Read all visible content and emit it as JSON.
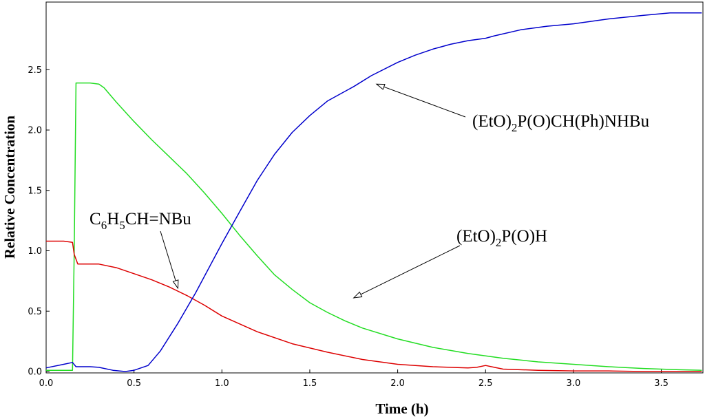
{
  "chart_data": {
    "type": "line",
    "title": "",
    "xlabel": "Time (h)",
    "ylabel": "Relative Concentration",
    "xlim": [
      0,
      3.73
    ],
    "ylim": [
      -0.02,
      3.0
    ],
    "grid": false,
    "x_ticks": [
      0.0,
      0.5,
      1.0,
      1.5,
      2.0,
      2.5,
      3.0,
      3.5
    ],
    "x_tick_labels": [
      "0.0",
      "0.5",
      "1.0",
      "1.5",
      "2.0",
      "2.5",
      "3.0",
      "3.5"
    ],
    "y_ticks": [
      0.0,
      0.5,
      1.0,
      1.5,
      2.0,
      2.5
    ],
    "y_tick_labels": [
      "0.0",
      "0.5",
      "1.0",
      "1.5",
      "2.0",
      "2.5"
    ],
    "series": [
      {
        "name": "(EtO)2P(O)CH(Ph)NHBu",
        "color": "#0000cc",
        "x": [
          0,
          0.1,
          0.15,
          0.17,
          0.25,
          0.3,
          0.38,
          0.45,
          0.5,
          0.58,
          0.65,
          0.75,
          0.85,
          1.0,
          1.1,
          1.2,
          1.3,
          1.4,
          1.5,
          1.6,
          1.65,
          1.75,
          1.85,
          2.0,
          2.1,
          2.2,
          2.3,
          2.4,
          2.5,
          2.55,
          2.7,
          2.85,
          3.0,
          3.2,
          3.4,
          3.55,
          3.73
        ],
        "y": [
          0.03,
          0.06,
          0.075,
          0.04,
          0.04,
          0.035,
          0.01,
          0.0,
          0.01,
          0.05,
          0.17,
          0.4,
          0.65,
          1.06,
          1.32,
          1.58,
          1.8,
          1.98,
          2.12,
          2.24,
          2.28,
          2.36,
          2.45,
          2.56,
          2.62,
          2.67,
          2.71,
          2.74,
          2.76,
          2.78,
          2.83,
          2.86,
          2.88,
          2.92,
          2.95,
          2.97,
          2.97
        ]
      },
      {
        "name": "(EtO)2P(O)H",
        "color": "#22dd22",
        "x": [
          0,
          0.15,
          0.16,
          0.17,
          0.19,
          0.25,
          0.3,
          0.33,
          0.4,
          0.5,
          0.6,
          0.7,
          0.8,
          0.9,
          1.0,
          1.1,
          1.2,
          1.3,
          1.4,
          1.5,
          1.6,
          1.7,
          1.8,
          2.0,
          2.2,
          2.4,
          2.5,
          2.6,
          2.8,
          3.0,
          3.2,
          3.4,
          3.6,
          3.73
        ],
        "y": [
          0.01,
          0.01,
          1.0,
          2.39,
          2.39,
          2.39,
          2.38,
          2.35,
          2.23,
          2.07,
          1.92,
          1.78,
          1.64,
          1.48,
          1.31,
          1.13,
          0.96,
          0.8,
          0.68,
          0.57,
          0.49,
          0.42,
          0.36,
          0.27,
          0.2,
          0.15,
          0.13,
          0.11,
          0.08,
          0.06,
          0.04,
          0.025,
          0.015,
          0.01
        ]
      },
      {
        "name": "C6H5CH=NBu",
        "color": "#dd0000",
        "x": [
          0,
          0.1,
          0.15,
          0.16,
          0.18,
          0.3,
          0.4,
          0.5,
          0.6,
          0.7,
          0.8,
          0.9,
          1.0,
          1.2,
          1.4,
          1.6,
          1.8,
          2.0,
          2.2,
          2.4,
          2.45,
          2.5,
          2.55,
          2.6,
          2.8,
          3.0,
          3.2,
          3.4,
          3.6,
          3.73
        ],
        "y": [
          1.08,
          1.08,
          1.07,
          0.97,
          0.89,
          0.89,
          0.86,
          0.81,
          0.76,
          0.7,
          0.63,
          0.55,
          0.46,
          0.33,
          0.23,
          0.16,
          0.1,
          0.06,
          0.04,
          0.03,
          0.035,
          0.05,
          0.035,
          0.02,
          0.01,
          0.005,
          0.005,
          0.0,
          0.0,
          0.0
        ]
      }
    ],
    "annotations": [
      {
        "id": "product",
        "main": "(EtO)",
        "sub": "2",
        "rest": "P(O)CH(Ph)NHBu",
        "points_to": [
          1.88,
          2.38
        ]
      },
      {
        "id": "phosphite",
        "main": "(EtO)",
        "sub": "2",
        "rest": "P(O)H",
        "points_to": [
          1.75,
          0.61
        ]
      },
      {
        "id": "imine",
        "parts": [
          [
            "C",
            "6"
          ],
          [
            "H",
            "5"
          ],
          [
            "CH=NBu",
            ""
          ]
        ],
        "points_to": [
          0.75,
          0.69
        ]
      }
    ]
  }
}
